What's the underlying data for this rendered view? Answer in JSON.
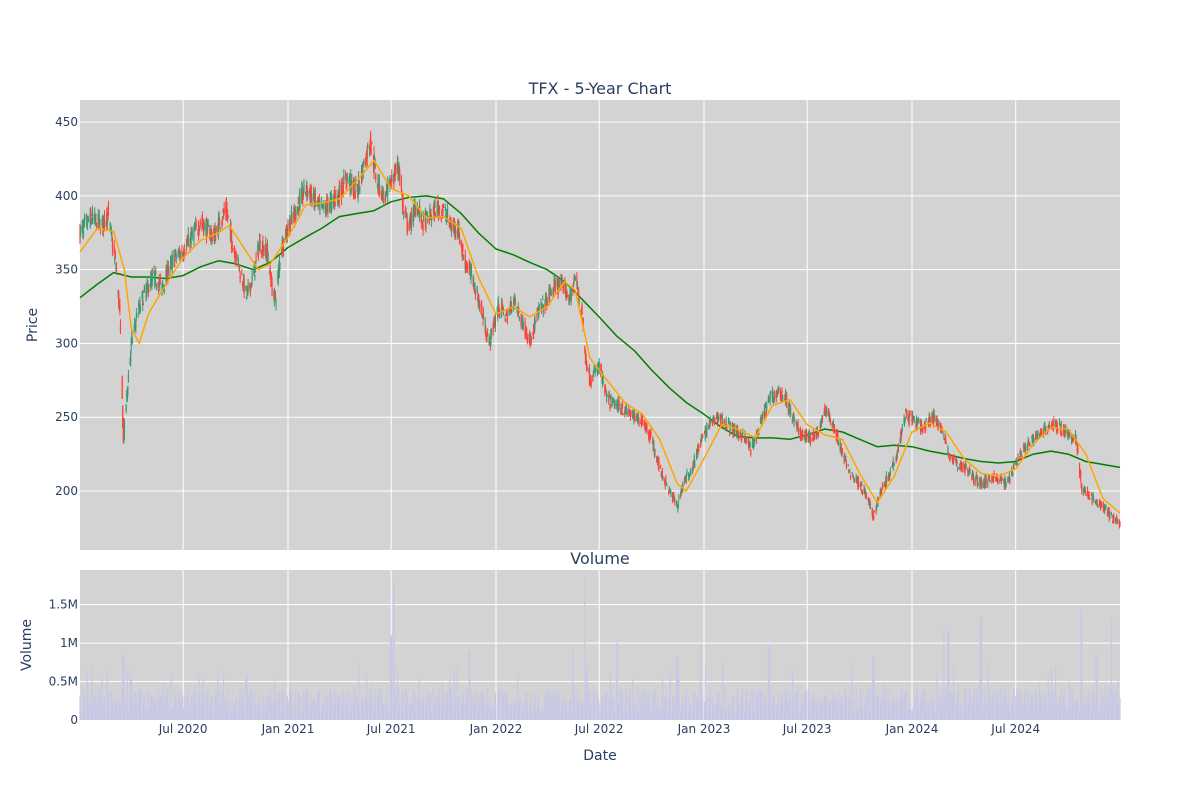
{
  "chart_data": [
    {
      "type": "candlestick",
      "title": "TFX - 5-Year Chart",
      "xlabel": "",
      "ylabel": "Price",
      "ylim": [
        160,
        465
      ],
      "xlim": [
        "2020-01-02",
        "2024-12-31"
      ],
      "y_ticks": [
        200,
        250,
        300,
        350,
        400,
        450
      ],
      "x_ticks": [
        "2020-07-01",
        "2021-01-01",
        "2021-07-01",
        "2022-01-01",
        "2022-07-01",
        "2023-01-01",
        "2023-07-01",
        "2024-01-01",
        "2024-07-01"
      ],
      "x_tick_labels": [
        "Jul 2020",
        "Jan 2021",
        "Jul 2021",
        "Jan 2022",
        "Jul 2022",
        "Jan 2023",
        "Jul 2023",
        "Jan 2024",
        "Jul 2024"
      ],
      "grid": true,
      "background": "#d3d3d3",
      "colors": {
        "up": "#3d9970",
        "down": "#ff4136",
        "ma_short": "#ffa500",
        "ma_long": "#008000"
      },
      "close_series": [
        [
          "2020-01-02",
          375
        ],
        [
          "2020-01-20",
          385
        ],
        [
          "2020-02-10",
          380
        ],
        [
          "2020-02-20",
          388
        ],
        [
          "2020-03-05",
          352
        ],
        [
          "2020-03-12",
          318
        ],
        [
          "2020-03-18",
          232
        ],
        [
          "2020-03-24",
          265
        ],
        [
          "2020-04-01",
          300
        ],
        [
          "2020-04-10",
          318
        ],
        [
          "2020-04-25",
          335
        ],
        [
          "2020-05-10",
          345
        ],
        [
          "2020-05-25",
          338
        ],
        [
          "2020-06-05",
          350
        ],
        [
          "2020-06-20",
          360
        ],
        [
          "2020-07-01",
          362
        ],
        [
          "2020-07-15",
          372
        ],
        [
          "2020-08-01",
          382
        ],
        [
          "2020-08-10",
          378
        ],
        [
          "2020-08-25",
          372
        ],
        [
          "2020-09-05",
          385
        ],
        [
          "2020-09-15",
          390
        ],
        [
          "2020-09-25",
          368
        ],
        [
          "2020-10-05",
          355
        ],
        [
          "2020-10-20",
          332
        ],
        [
          "2020-11-01",
          345
        ],
        [
          "2020-11-12",
          368
        ],
        [
          "2020-11-25",
          362
        ],
        [
          "2020-12-05",
          335
        ],
        [
          "2020-12-10",
          330
        ],
        [
          "2020-12-20",
          365
        ],
        [
          "2021-01-05",
          382
        ],
        [
          "2021-01-20",
          395
        ],
        [
          "2021-02-01",
          405
        ],
        [
          "2021-02-15",
          398
        ],
        [
          "2021-03-01",
          390
        ],
        [
          "2021-03-15",
          395
        ],
        [
          "2021-04-01",
          402
        ],
        [
          "2021-04-15",
          412
        ],
        [
          "2021-05-01",
          402
        ],
        [
          "2021-05-15",
          422
        ],
        [
          "2021-05-25",
          438
        ],
        [
          "2021-06-05",
          412
        ],
        [
          "2021-06-20",
          398
        ],
        [
          "2021-07-01",
          410
        ],
        [
          "2021-07-15",
          420
        ],
        [
          "2021-07-22",
          390
        ],
        [
          "2021-08-01",
          378
        ],
        [
          "2021-08-15",
          395
        ],
        [
          "2021-08-25",
          382
        ],
        [
          "2021-09-05",
          385
        ],
        [
          "2021-09-20",
          392
        ],
        [
          "2021-10-05",
          388
        ],
        [
          "2021-10-15",
          378
        ],
        [
          "2021-10-25",
          380
        ],
        [
          "2021-11-05",
          358
        ],
        [
          "2021-11-20",
          345
        ],
        [
          "2021-12-01",
          330
        ],
        [
          "2021-12-10",
          315
        ],
        [
          "2021-12-20",
          300
        ],
        [
          "2022-01-05",
          325
        ],
        [
          "2022-01-20",
          318
        ],
        [
          "2022-02-01",
          330
        ],
        [
          "2022-02-15",
          315
        ],
        [
          "2022-03-01",
          302
        ],
        [
          "2022-03-15",
          320
        ],
        [
          "2022-04-01",
          330
        ],
        [
          "2022-04-15",
          340
        ],
        [
          "2022-05-01",
          338
        ],
        [
          "2022-05-10",
          330
        ],
        [
          "2022-05-20",
          345
        ],
        [
          "2022-06-01",
          320
        ],
        [
          "2022-06-05",
          295
        ],
        [
          "2022-06-15",
          275
        ],
        [
          "2022-07-01",
          285
        ],
        [
          "2022-07-15",
          262
        ],
        [
          "2022-08-01",
          258
        ],
        [
          "2022-08-15",
          255
        ],
        [
          "2022-09-01",
          250
        ],
        [
          "2022-09-15",
          248
        ],
        [
          "2022-10-01",
          235
        ],
        [
          "2022-10-15",
          215
        ],
        [
          "2022-11-01",
          200
        ],
        [
          "2022-11-15",
          190
        ],
        [
          "2022-11-25",
          205
        ],
        [
          "2022-12-10",
          215
        ],
        [
          "2022-12-25",
          232
        ],
        [
          "2023-01-10",
          245
        ],
        [
          "2023-01-25",
          250
        ],
        [
          "2023-02-10",
          245
        ],
        [
          "2023-02-25",
          240
        ],
        [
          "2023-03-10",
          238
        ],
        [
          "2023-03-25",
          228
        ],
        [
          "2023-04-10",
          245
        ],
        [
          "2023-04-25",
          262
        ],
        [
          "2023-05-10",
          268
        ],
        [
          "2023-05-25",
          262
        ],
        [
          "2023-06-05",
          250
        ],
        [
          "2023-06-20",
          238
        ],
        [
          "2023-07-05",
          236
        ],
        [
          "2023-07-20",
          240
        ],
        [
          "2023-08-01",
          255
        ],
        [
          "2023-08-15",
          245
        ],
        [
          "2023-09-01",
          225
        ],
        [
          "2023-09-15",
          212
        ],
        [
          "2023-10-01",
          205
        ],
        [
          "2023-10-15",
          195
        ],
        [
          "2023-10-25",
          182
        ],
        [
          "2023-11-05",
          198
        ],
        [
          "2023-11-20",
          210
        ],
        [
          "2023-12-05",
          225
        ],
        [
          "2023-12-20",
          252
        ],
        [
          "2024-01-05",
          248
        ],
        [
          "2024-01-20",
          242
        ],
        [
          "2024-02-05",
          250
        ],
        [
          "2024-02-20",
          245
        ],
        [
          "2024-03-05",
          225
        ],
        [
          "2024-03-20",
          218
        ],
        [
          "2024-04-05",
          215
        ],
        [
          "2024-04-20",
          208
        ],
        [
          "2024-05-05",
          205
        ],
        [
          "2024-05-20",
          210
        ],
        [
          "2024-06-01",
          208
        ],
        [
          "2024-06-15",
          205
        ],
        [
          "2024-07-01",
          220
        ],
        [
          "2024-07-15",
          228
        ],
        [
          "2024-08-01",
          235
        ],
        [
          "2024-08-15",
          240
        ],
        [
          "2024-09-01",
          245
        ],
        [
          "2024-09-15",
          243
        ],
        [
          "2024-10-01",
          238
        ],
        [
          "2024-10-15",
          236
        ],
        [
          "2024-10-25",
          200
        ],
        [
          "2024-11-05",
          198
        ],
        [
          "2024-11-20",
          192
        ],
        [
          "2024-12-05",
          188
        ],
        [
          "2024-12-15",
          182
        ],
        [
          "2024-12-31",
          178
        ]
      ],
      "ma_short_series": [
        [
          "2020-01-02",
          362
        ],
        [
          "2020-02-01",
          378
        ],
        [
          "2020-03-01",
          376
        ],
        [
          "2020-03-20",
          350
        ],
        [
          "2020-04-01",
          310
        ],
        [
          "2020-04-15",
          300
        ],
        [
          "2020-05-01",
          320
        ],
        [
          "2020-06-01",
          340
        ],
        [
          "2020-07-01",
          358
        ],
        [
          "2020-08-01",
          370
        ],
        [
          "2020-09-01",
          375
        ],
        [
          "2020-09-20",
          380
        ],
        [
          "2020-10-15",
          365
        ],
        [
          "2020-11-10",
          350
        ],
        [
          "2020-12-01",
          354
        ],
        [
          "2021-01-01",
          372
        ],
        [
          "2021-02-01",
          394
        ],
        [
          "2021-03-01",
          395
        ],
        [
          "2021-04-01",
          398
        ],
        [
          "2021-05-01",
          410
        ],
        [
          "2021-06-01",
          424
        ],
        [
          "2021-07-01",
          405
        ],
        [
          "2021-08-01",
          400
        ],
        [
          "2021-09-01",
          385
        ],
        [
          "2021-10-01",
          386
        ],
        [
          "2021-11-01",
          378
        ],
        [
          "2021-12-01",
          345
        ],
        [
          "2022-01-01",
          320
        ],
        [
          "2022-02-01",
          325
        ],
        [
          "2022-03-01",
          318
        ],
        [
          "2022-04-01",
          325
        ],
        [
          "2022-05-01",
          342
        ],
        [
          "2022-05-20",
          336
        ],
        [
          "2022-06-15",
          290
        ],
        [
          "2022-07-15",
          275
        ],
        [
          "2022-08-15",
          260
        ],
        [
          "2022-09-15",
          252
        ],
        [
          "2022-10-15",
          235
        ],
        [
          "2022-11-15",
          205
        ],
        [
          "2022-12-01",
          200
        ],
        [
          "2023-01-01",
          222
        ],
        [
          "2023-02-01",
          245
        ],
        [
          "2023-03-01",
          242
        ],
        [
          "2023-04-01",
          236
        ],
        [
          "2023-05-01",
          258
        ],
        [
          "2023-06-01",
          262
        ],
        [
          "2023-07-01",
          245
        ],
        [
          "2023-08-01",
          238
        ],
        [
          "2023-09-01",
          235
        ],
        [
          "2023-10-01",
          212
        ],
        [
          "2023-11-01",
          192
        ],
        [
          "2023-12-01",
          210
        ],
        [
          "2024-01-01",
          240
        ],
        [
          "2024-02-01",
          246
        ],
        [
          "2024-03-01",
          240
        ],
        [
          "2024-04-01",
          222
        ],
        [
          "2024-05-01",
          212
        ],
        [
          "2024-06-01",
          210
        ],
        [
          "2024-07-01",
          215
        ],
        [
          "2024-08-01",
          232
        ],
        [
          "2024-09-01",
          243
        ],
        [
          "2024-10-01",
          242
        ],
        [
          "2024-11-01",
          225
        ],
        [
          "2024-12-01",
          195
        ],
        [
          "2024-12-31",
          185
        ]
      ],
      "ma_long_series": [
        [
          "2020-01-02",
          331
        ],
        [
          "2020-02-01",
          340
        ],
        [
          "2020-03-01",
          348
        ],
        [
          "2020-04-01",
          345
        ],
        [
          "2020-05-01",
          345
        ],
        [
          "2020-06-01",
          344
        ],
        [
          "2020-07-01",
          346
        ],
        [
          "2020-08-01",
          352
        ],
        [
          "2020-09-01",
          356
        ],
        [
          "2020-10-01",
          354
        ],
        [
          "2020-11-01",
          350
        ],
        [
          "2020-12-01",
          355
        ],
        [
          "2021-01-01",
          365
        ],
        [
          "2021-02-01",
          372
        ],
        [
          "2021-03-01",
          378
        ],
        [
          "2021-04-01",
          386
        ],
        [
          "2021-05-01",
          388
        ],
        [
          "2021-06-01",
          390
        ],
        [
          "2021-07-01",
          396
        ],
        [
          "2021-08-01",
          399
        ],
        [
          "2021-09-01",
          400
        ],
        [
          "2021-10-01",
          398
        ],
        [
          "2021-11-01",
          388
        ],
        [
          "2021-12-01",
          375
        ],
        [
          "2022-01-01",
          364
        ],
        [
          "2022-02-01",
          360
        ],
        [
          "2022-03-01",
          355
        ],
        [
          "2022-04-01",
          350
        ],
        [
          "2022-05-01",
          342
        ],
        [
          "2022-06-01",
          330
        ],
        [
          "2022-07-01",
          318
        ],
        [
          "2022-08-01",
          305
        ],
        [
          "2022-09-01",
          295
        ],
        [
          "2022-10-01",
          282
        ],
        [
          "2022-11-01",
          270
        ],
        [
          "2022-12-01",
          260
        ],
        [
          "2023-01-01",
          252
        ],
        [
          "2023-02-01",
          243
        ],
        [
          "2023-03-01",
          237
        ],
        [
          "2023-04-01",
          236
        ],
        [
          "2023-05-01",
          236
        ],
        [
          "2023-06-01",
          235
        ],
        [
          "2023-07-01",
          238
        ],
        [
          "2023-08-01",
          242
        ],
        [
          "2023-09-01",
          240
        ],
        [
          "2023-10-01",
          235
        ],
        [
          "2023-11-01",
          230
        ],
        [
          "2023-12-01",
          231
        ],
        [
          "2024-01-01",
          230
        ],
        [
          "2024-02-01",
          227
        ],
        [
          "2024-03-01",
          225
        ],
        [
          "2024-04-01",
          222
        ],
        [
          "2024-05-01",
          220
        ],
        [
          "2024-06-01",
          219
        ],
        [
          "2024-07-01",
          220
        ],
        [
          "2024-08-01",
          225
        ],
        [
          "2024-09-01",
          227
        ],
        [
          "2024-10-01",
          225
        ],
        [
          "2024-11-01",
          220
        ],
        [
          "2024-12-31",
          216
        ]
      ]
    },
    {
      "type": "bar",
      "title": "Volume",
      "xlabel": "Date",
      "ylabel": "Volume",
      "ylim": [
        0,
        1950000
      ],
      "y_ticks": [
        0,
        500000,
        1000000,
        1500000
      ],
      "y_tick_labels": [
        "0",
        "0.5M",
        "1M",
        "1.5M"
      ],
      "x_ticks": [
        "2020-07-01",
        "2021-01-01",
        "2021-07-01",
        "2022-01-01",
        "2022-07-01",
        "2023-01-01",
        "2023-07-01",
        "2024-01-01",
        "2024-07-01"
      ],
      "x_tick_labels": [
        "Jul 2020",
        "Jan 2021",
        "Jul 2021",
        "Jan 2022",
        "Jul 2022",
        "Jan 2023",
        "Jul 2023",
        "Jan 2024",
        "Jul 2024"
      ],
      "grid": true,
      "background": "#d3d3d3",
      "bar_color": "#c8c8e6",
      "baseline_volume": 250000,
      "volume_spikes": [
        [
          "2020-03-18",
          850000
        ],
        [
          "2020-04-01",
          520000
        ],
        [
          "2020-10-20",
          600000
        ],
        [
          "2021-07-01",
          1100000
        ],
        [
          "2021-07-05",
          1770000
        ],
        [
          "2021-11-15",
          900000
        ],
        [
          "2022-05-15",
          950000
        ],
        [
          "2022-06-05",
          1850000
        ],
        [
          "2022-06-10",
          700000
        ],
        [
          "2022-08-01",
          1000000
        ],
        [
          "2022-11-15",
          820000
        ],
        [
          "2022-12-25",
          990000
        ],
        [
          "2023-04-25",
          960000
        ],
        [
          "2023-06-05",
          650000
        ],
        [
          "2023-10-25",
          830000
        ],
        [
          "2024-02-25",
          1200000
        ],
        [
          "2024-03-05",
          1150000
        ],
        [
          "2024-05-01",
          1340000
        ],
        [
          "2024-10-25",
          1450000
        ],
        [
          "2024-11-20",
          850000
        ],
        [
          "2024-12-15",
          1300000
        ]
      ]
    }
  ]
}
